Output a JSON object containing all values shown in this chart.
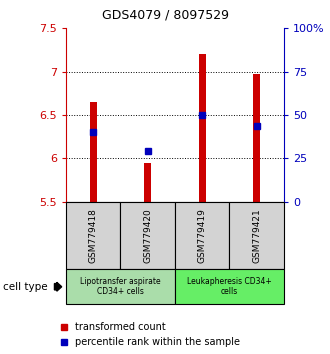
{
  "title": "GDS4079 / 8097529",
  "samples": [
    "GSM779418",
    "GSM779420",
    "GSM779419",
    "GSM779421"
  ],
  "transformed_counts": [
    6.65,
    5.95,
    7.2,
    6.97
  ],
  "percentile_ranks": [
    6.3,
    6.08,
    6.5,
    6.37
  ],
  "ylim_left": [
    5.5,
    7.5
  ],
  "yticks_left": [
    5.5,
    6.0,
    6.5,
    7.0,
    7.5
  ],
  "ytick_left_labels": [
    "5.5",
    "6",
    "6.5",
    "7",
    "7.5"
  ],
  "yticks_right_pct": [
    0,
    25,
    50,
    75,
    100
  ],
  "yticks_right_labels": [
    "0",
    "25",
    "50",
    "75",
    "100%"
  ],
  "cell_types": [
    {
      "label": "Lipotransfer aspirate\nCD34+ cells",
      "color": "#99ee99",
      "span": [
        0,
        2
      ]
    },
    {
      "label": "Leukapheresis CD34+\ncells",
      "color": "#55dd55",
      "span": [
        2,
        4
      ]
    }
  ],
  "bar_color": "#cc0000",
  "dot_color": "#0000bb",
  "bar_bottom": 5.5,
  "left_axis_color": "#cc0000",
  "right_axis_color": "#0000bb",
  "bar_width": 0.13,
  "grid_lines": [
    6.0,
    6.5,
    7.0
  ],
  "sample_box_color": "#d3d3d3",
  "celltype_colors": [
    "#aaddaa",
    "#66ee66"
  ]
}
